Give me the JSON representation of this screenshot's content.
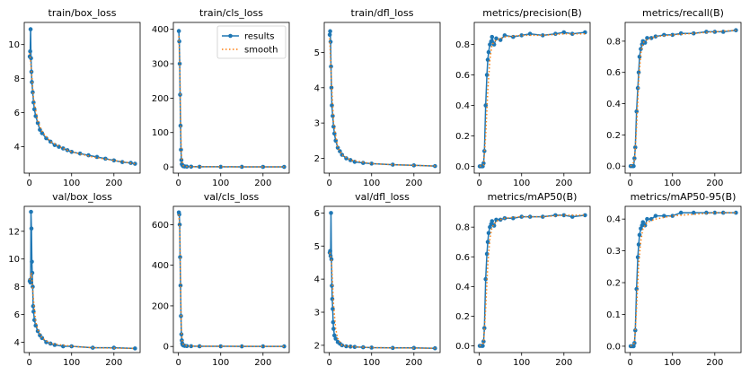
{
  "chart_data": [
    {
      "type": "line",
      "title": "train/box_loss",
      "xlim": [
        -12,
        262
      ],
      "ylim": [
        2.45,
        11.3
      ],
      "xticks": [
        0,
        100,
        200
      ],
      "yticks": [
        4,
        6,
        8,
        10
      ],
      "series": [
        {
          "name": "results",
          "x": [
            1,
            2,
            3,
            4,
            5,
            6,
            8,
            10,
            12,
            15,
            20,
            25,
            30,
            40,
            50,
            60,
            70,
            80,
            90,
            100,
            120,
            140,
            160,
            180,
            200,
            220,
            240,
            250
          ],
          "values": [
            9.3,
            9.6,
            10.9,
            9.2,
            8.4,
            7.8,
            7.2,
            6.6,
            6.2,
            5.8,
            5.4,
            5.0,
            4.8,
            4.5,
            4.3,
            4.1,
            4.0,
            3.9,
            3.8,
            3.7,
            3.6,
            3.5,
            3.4,
            3.3,
            3.2,
            3.1,
            3.05,
            3.0
          ]
        },
        {
          "name": "smooth",
          "x": [
            1,
            5,
            10,
            20,
            30,
            50,
            80,
            100,
            150,
            200,
            250
          ],
          "values": [
            9.5,
            8.5,
            6.8,
            5.5,
            4.9,
            4.3,
            3.9,
            3.7,
            3.4,
            3.2,
            3.0
          ]
        }
      ]
    },
    {
      "type": "line",
      "title": "train/cls_loss",
      "xlim": [
        -12,
        262
      ],
      "ylim": [
        -18,
        420
      ],
      "xticks": [
        0,
        100,
        200
      ],
      "yticks": [
        0,
        100,
        200,
        300,
        400
      ],
      "series": [
        {
          "name": "results",
          "x": [
            1,
            2,
            3,
            4,
            5,
            6,
            7,
            8,
            10,
            12,
            15,
            20,
            30,
            50,
            100,
            150,
            200,
            250
          ],
          "values": [
            395,
            365,
            300,
            210,
            120,
            50,
            20,
            8,
            4,
            2,
            1.5,
            1,
            0.8,
            0.6,
            0.4,
            0.3,
            0.2,
            0.2
          ]
        },
        {
          "name": "smooth",
          "x": [
            1,
            3,
            5,
            7,
            9,
            12,
            20,
            50,
            250
          ],
          "values": [
            380,
            300,
            150,
            40,
            10,
            3,
            1,
            0.6,
            0.2
          ]
        }
      ],
      "legend": {
        "location": "upper right",
        "entries": [
          "results",
          "smooth"
        ]
      }
    },
    {
      "type": "line",
      "title": "train/dfl_loss",
      "xlim": [
        -12,
        262
      ],
      "ylim": [
        1.58,
        5.85
      ],
      "xticks": [
        0,
        100,
        200
      ],
      "yticks": [
        2,
        3,
        4,
        5
      ],
      "series": [
        {
          "name": "results",
          "x": [
            1,
            2,
            3,
            4,
            5,
            6,
            8,
            10,
            12,
            15,
            20,
            25,
            30,
            40,
            50,
            60,
            80,
            100,
            150,
            200,
            250
          ],
          "values": [
            5.5,
            5.6,
            5.3,
            4.6,
            4.0,
            3.5,
            3.2,
            2.9,
            2.7,
            2.5,
            2.3,
            2.2,
            2.1,
            2.0,
            1.95,
            1.9,
            1.87,
            1.85,
            1.82,
            1.8,
            1.78
          ]
        },
        {
          "name": "smooth",
          "x": [
            1,
            5,
            10,
            20,
            30,
            50,
            100,
            150,
            250
          ],
          "values": [
            5.4,
            4.2,
            3.0,
            2.3,
            2.1,
            1.95,
            1.85,
            1.82,
            1.78
          ]
        }
      ]
    },
    {
      "type": "line",
      "title": "metrics/precision(B)",
      "xlim": [
        -12,
        262
      ],
      "ylim": [
        -0.045,
        0.945
      ],
      "xticks": [
        0,
        100,
        200
      ],
      "yticks": [
        0.0,
        0.2,
        0.4,
        0.6,
        0.8
      ],
      "series": [
        {
          "name": "results",
          "x": [
            1,
            5,
            8,
            10,
            12,
            15,
            18,
            20,
            22,
            25,
            28,
            30,
            35,
            40,
            50,
            60,
            80,
            100,
            120,
            150,
            180,
            200,
            220,
            250
          ],
          "values": [
            0.0,
            0.0,
            0.0,
            0.02,
            0.1,
            0.4,
            0.6,
            0.7,
            0.75,
            0.8,
            0.82,
            0.85,
            0.8,
            0.84,
            0.83,
            0.86,
            0.85,
            0.86,
            0.87,
            0.86,
            0.87,
            0.88,
            0.87,
            0.88
          ]
        },
        {
          "name": "smooth",
          "x": [
            1,
            10,
            15,
            20,
            25,
            30,
            40,
            60,
            100,
            150,
            200,
            250
          ],
          "values": [
            0.0,
            0.01,
            0.2,
            0.5,
            0.7,
            0.8,
            0.83,
            0.85,
            0.86,
            0.86,
            0.87,
            0.87
          ]
        }
      ]
    },
    {
      "type": "line",
      "title": "metrics/recall(B)",
      "xlim": [
        -12,
        262
      ],
      "ylim": [
        -0.045,
        0.92
      ],
      "xticks": [
        0,
        100,
        200
      ],
      "yticks": [
        0.0,
        0.2,
        0.4,
        0.6,
        0.8
      ],
      "series": [
        {
          "name": "results",
          "x": [
            1,
            5,
            8,
            10,
            12,
            15,
            18,
            20,
            22,
            25,
            28,
            30,
            35,
            40,
            50,
            60,
            80,
            100,
            120,
            150,
            180,
            200,
            220,
            250
          ],
          "values": [
            0.0,
            0.0,
            0.0,
            0.05,
            0.12,
            0.35,
            0.5,
            0.6,
            0.7,
            0.75,
            0.78,
            0.8,
            0.79,
            0.82,
            0.82,
            0.83,
            0.84,
            0.84,
            0.85,
            0.85,
            0.86,
            0.86,
            0.86,
            0.87
          ]
        },
        {
          "name": "smooth",
          "x": [
            1,
            10,
            15,
            20,
            25,
            30,
            40,
            60,
            100,
            150,
            200,
            250
          ],
          "values": [
            0.0,
            0.03,
            0.25,
            0.55,
            0.72,
            0.79,
            0.81,
            0.83,
            0.84,
            0.85,
            0.86,
            0.87
          ]
        }
      ]
    },
    {
      "type": "line",
      "title": "val/box_loss",
      "xlim": [
        -12,
        262
      ],
      "ylim": [
        3.25,
        13.8
      ],
      "xticks": [
        0,
        100,
        200
      ],
      "yticks": [
        4,
        6,
        8,
        10,
        12
      ],
      "series": [
        {
          "name": "results",
          "x": [
            1,
            2,
            3,
            4,
            5,
            6,
            7,
            8,
            9,
            10,
            12,
            15,
            20,
            25,
            30,
            40,
            50,
            60,
            80,
            100,
            150,
            200,
            250
          ],
          "values": [
            8.4,
            8.5,
            8.3,
            13.4,
            12.2,
            9.8,
            9.0,
            8.0,
            6.6,
            6.2,
            5.6,
            5.2,
            4.8,
            4.5,
            4.3,
            4.0,
            3.9,
            3.8,
            3.7,
            3.7,
            3.6,
            3.6,
            3.55
          ]
        },
        {
          "name": "smooth",
          "x": [
            1,
            5,
            10,
            15,
            20,
            30,
            50,
            100,
            150,
            250
          ],
          "values": [
            8.5,
            9.0,
            7.0,
            5.5,
            4.9,
            4.3,
            3.9,
            3.7,
            3.6,
            3.55
          ]
        }
      ]
    },
    {
      "type": "line",
      "title": "val/cls_loss",
      "xlim": [
        -12,
        262
      ],
      "ylim": [
        -30,
        690
      ],
      "xticks": [
        0,
        100,
        200
      ],
      "yticks": [
        0,
        200,
        400,
        600
      ],
      "series": [
        {
          "name": "results",
          "x": [
            1,
            2,
            3,
            4,
            5,
            6,
            7,
            8,
            9,
            10,
            12,
            15,
            20,
            30,
            50,
            100,
            150,
            200,
            250
          ],
          "values": [
            660,
            650,
            600,
            440,
            300,
            150,
            60,
            30,
            15,
            8,
            5,
            3,
            2,
            1.5,
            1,
            0.8,
            0.6,
            0.5,
            0.5
          ]
        },
        {
          "name": "smooth",
          "x": [
            1,
            3,
            5,
            7,
            9,
            12,
            20,
            50,
            250
          ],
          "values": [
            650,
            580,
            320,
            90,
            25,
            8,
            3,
            1,
            0.5
          ]
        }
      ]
    },
    {
      "type": "line",
      "title": "val/dfl_loss",
      "xlim": [
        -12,
        262
      ],
      "ylim": [
        1.78,
        6.2
      ],
      "xticks": [
        0,
        100,
        200
      ],
      "yticks": [
        2,
        3,
        4,
        5,
        6
      ],
      "series": [
        {
          "name": "results",
          "x": [
            1,
            2,
            3,
            4,
            5,
            6,
            7,
            8,
            9,
            10,
            12,
            15,
            20,
            25,
            30,
            40,
            50,
            60,
            80,
            100,
            150,
            200,
            250
          ],
          "values": [
            4.8,
            4.85,
            4.7,
            6.0,
            4.6,
            3.8,
            3.4,
            3.1,
            2.7,
            2.5,
            2.3,
            2.2,
            2.1,
            2.05,
            2.0,
            1.97,
            1.96,
            1.95,
            1.94,
            1.93,
            1.92,
            1.92,
            1.91
          ]
        },
        {
          "name": "smooth",
          "x": [
            1,
            5,
            10,
            15,
            20,
            30,
            50,
            100,
            150,
            250
          ],
          "values": [
            4.8,
            4.6,
            3.2,
            2.5,
            2.2,
            2.0,
            1.96,
            1.93,
            1.92,
            1.91
          ]
        }
      ]
    },
    {
      "type": "line",
      "title": "metrics/mAP50(B)",
      "xlim": [
        -12,
        262
      ],
      "ylim": [
        -0.045,
        0.94
      ],
      "xticks": [
        0,
        100,
        200
      ],
      "yticks": [
        0.0,
        0.2,
        0.4,
        0.6,
        0.8
      ],
      "series": [
        {
          "name": "results",
          "x": [
            1,
            5,
            8,
            10,
            12,
            15,
            18,
            20,
            22,
            25,
            28,
            30,
            35,
            40,
            50,
            60,
            80,
            100,
            120,
            150,
            180,
            200,
            220,
            250
          ],
          "values": [
            0.0,
            0.0,
            0.0,
            0.03,
            0.12,
            0.45,
            0.62,
            0.7,
            0.76,
            0.8,
            0.82,
            0.84,
            0.81,
            0.85,
            0.85,
            0.86,
            0.86,
            0.87,
            0.87,
            0.87,
            0.88,
            0.88,
            0.87,
            0.88
          ]
        },
        {
          "name": "smooth",
          "x": [
            1,
            10,
            15,
            20,
            25,
            30,
            40,
            60,
            100,
            150,
            200,
            250
          ],
          "values": [
            0.0,
            0.02,
            0.25,
            0.55,
            0.72,
            0.8,
            0.84,
            0.86,
            0.87,
            0.87,
            0.88,
            0.88
          ]
        }
      ]
    },
    {
      "type": "line",
      "title": "metrics/mAP50-95(B)",
      "xlim": [
        -12,
        262
      ],
      "ylim": [
        -0.02,
        0.44
      ],
      "xticks": [
        0,
        100,
        200
      ],
      "yticks": [
        0.0,
        0.1,
        0.2,
        0.3,
        0.4
      ],
      "series": [
        {
          "name": "results",
          "x": [
            1,
            5,
            8,
            10,
            12,
            15,
            18,
            20,
            22,
            25,
            28,
            30,
            35,
            40,
            50,
            60,
            80,
            100,
            120,
            150,
            180,
            200,
            220,
            250
          ],
          "values": [
            0.0,
            0.0,
            0.0,
            0.01,
            0.05,
            0.18,
            0.28,
            0.32,
            0.35,
            0.37,
            0.38,
            0.39,
            0.38,
            0.4,
            0.4,
            0.41,
            0.41,
            0.41,
            0.42,
            0.42,
            0.42,
            0.42,
            0.42,
            0.42
          ]
        },
        {
          "name": "smooth",
          "x": [
            1,
            10,
            15,
            20,
            25,
            30,
            40,
            60,
            100,
            150,
            200,
            250
          ],
          "values": [
            0.0,
            0.01,
            0.12,
            0.26,
            0.33,
            0.37,
            0.39,
            0.4,
            0.41,
            0.415,
            0.42,
            0.42
          ]
        }
      ]
    }
  ],
  "colors": {
    "results": "#1f77b4",
    "smooth": "#ff7f0e"
  }
}
